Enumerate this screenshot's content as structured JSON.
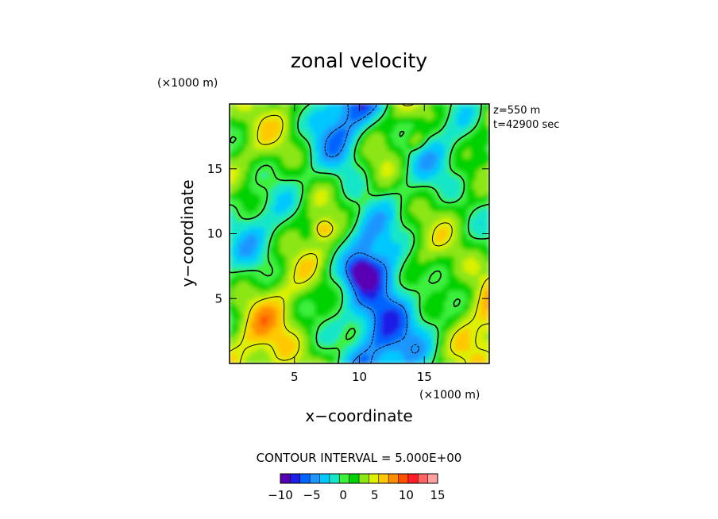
{
  "chart_data": {
    "type": "heatmap",
    "title": "zonal velocity",
    "xlabel": "x−coordinate",
    "ylabel": "y−coordinate",
    "x_unit": "(×1000 m)",
    "y_unit": "(×1000 m)",
    "xlim": [
      0,
      20
    ],
    "ylim": [
      0,
      20
    ],
    "x_ticks": [
      5,
      10,
      15
    ],
    "y_ticks": [
      5,
      10,
      15
    ],
    "x_tick_labels": [
      "5",
      "10",
      "15"
    ],
    "y_tick_labels": [
      "5",
      "10",
      "15"
    ],
    "info_lines": [
      "z=550 m",
      "t=42900 sec"
    ],
    "contour_interval_text": "CONTOUR INTERVAL = 5.000E+00",
    "contour_levels": [
      -5,
      0,
      5
    ],
    "colorbar": {
      "colors": [
        "#5a00b4",
        "#1e1ee6",
        "#0064ff",
        "#1e96ff",
        "#00c8ff",
        "#14e6c8",
        "#3cf03c",
        "#00d200",
        "#8ce614",
        "#dcf000",
        "#ffc800",
        "#ff8c00",
        "#ff5000",
        "#ff1e28",
        "#ff6464",
        "#ffa0a0"
      ],
      "range": [
        -10,
        15
      ],
      "tick_labels": [
        "−10",
        "−5",
        "0",
        "5",
        "10",
        "15"
      ],
      "tick_values": [
        -10,
        -5,
        0,
        5,
        10,
        15
      ]
    },
    "grid": false,
    "legend": "colorbar-bottom-center"
  }
}
